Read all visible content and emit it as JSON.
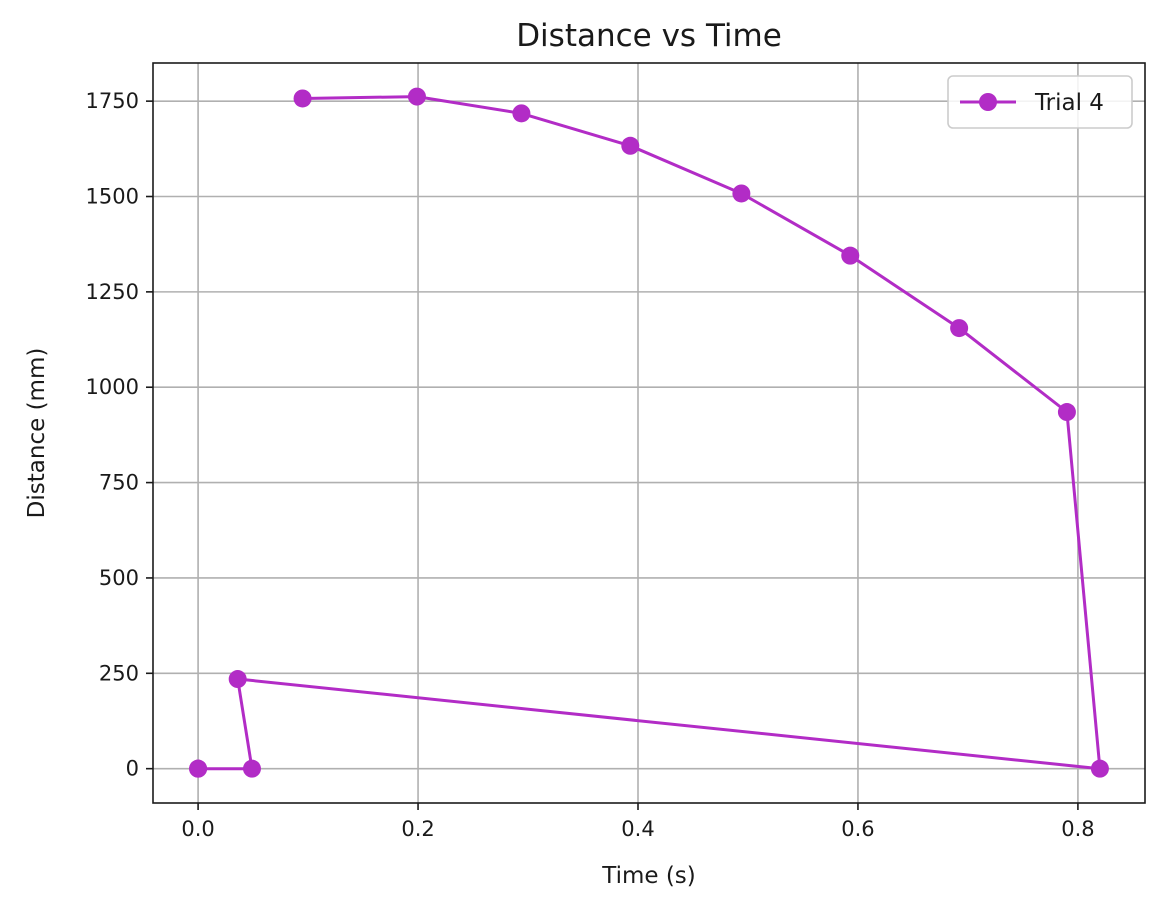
{
  "chart_data": {
    "type": "line",
    "title": "Distance vs Time",
    "xlabel": "Time (s)",
    "ylabel": "Distance (mm)",
    "xlim": [
      -0.041,
      0.861
    ],
    "ylim": [
      -90,
      1850
    ],
    "xticks": [
      0.0,
      0.2,
      0.4,
      0.6,
      0.8
    ],
    "xtick_labels": [
      "0.0",
      "0.2",
      "0.4",
      "0.6",
      "0.8"
    ],
    "yticks": [
      0,
      250,
      500,
      750,
      1000,
      1250,
      1500,
      1750
    ],
    "ytick_labels": [
      "0",
      "250",
      "500",
      "750",
      "1000",
      "1250",
      "1500",
      "1750"
    ],
    "grid": true,
    "legend_position": "top-right",
    "series": [
      {
        "name": "Trial 4",
        "color": "#b22cc6",
        "marker": "circle",
        "x": [
          0.0,
          0.0,
          0.049,
          0.036,
          0.82,
          0.79,
          0.692,
          0.593,
          0.494,
          0.393,
          0.294,
          0.199,
          0.095
        ],
        "y": [
          0,
          0,
          0,
          235,
          0,
          935,
          1155,
          1345,
          1508,
          1633,
          1718,
          1762,
          1757
        ]
      }
    ]
  }
}
